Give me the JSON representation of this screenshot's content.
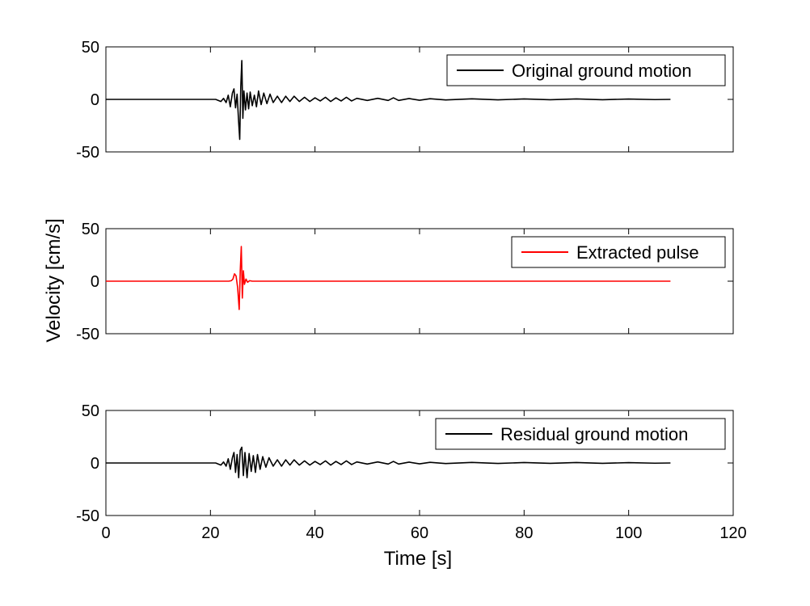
{
  "figure": {
    "ylabel": "Velocity [cm/s]",
    "xlabel": "Time [s]"
  },
  "chart_data": [
    {
      "type": "line",
      "xlim": [
        0,
        120
      ],
      "ylim": [
        -50,
        50
      ],
      "xticks": [
        0,
        20,
        40,
        60,
        80,
        100,
        120
      ],
      "yticks": [
        50,
        0,
        -50
      ],
      "legend": "top-right",
      "grid": false,
      "series": [
        {
          "name": "Original ground motion",
          "color": "#000000",
          "x": [
            0,
            21,
            22,
            22.5,
            23,
            23.4,
            23.8,
            24.2,
            24.5,
            24.8,
            25.1,
            25.4,
            25.6,
            25.8,
            26.0,
            26.2,
            26.4,
            26.7,
            27.0,
            27.3,
            27.6,
            28.0,
            28.4,
            28.8,
            29.2,
            29.7,
            30.2,
            30.8,
            31.4,
            32.0,
            32.8,
            33.6,
            34.4,
            35.2,
            36.0,
            37.0,
            38.0,
            39.0,
            40.0,
            41.0,
            42.0,
            43.0,
            44.0,
            45.0,
            46.0,
            47.0,
            48.0,
            50.0,
            52.0,
            54.0,
            55.0,
            56.0,
            58.0,
            60.0,
            62.0,
            65.0,
            70.0,
            75.0,
            80.0,
            85.0,
            90.0,
            95.0,
            100.0,
            105.0,
            108.0
          ],
          "y": [
            0,
            0,
            -2,
            1,
            -3,
            4,
            -7,
            6,
            10,
            -8,
            5,
            -22,
            -38,
            12,
            37,
            -18,
            8,
            -10,
            6,
            -9,
            7,
            -6,
            4,
            -7,
            8,
            -5,
            6,
            -4,
            5,
            -3,
            3,
            -3,
            3,
            -2,
            3,
            -2,
            2,
            -2,
            1.5,
            -1.5,
            2,
            -2,
            1.5,
            -1.5,
            2,
            -1.5,
            1,
            -1,
            1,
            -1,
            1.5,
            -1,
            0.8,
            -0.8,
            0.6,
            -0.5,
            0.5,
            -0.4,
            0.4,
            -0.3,
            0.4,
            -0.3,
            0.3,
            -0.2,
            0
          ]
        }
      ]
    },
    {
      "type": "line",
      "xlim": [
        0,
        120
      ],
      "ylim": [
        -50,
        50
      ],
      "xticks": [
        0,
        20,
        40,
        60,
        80,
        100,
        120
      ],
      "yticks": [
        50,
        0,
        -50
      ],
      "legend": "top-right",
      "grid": false,
      "series": [
        {
          "name": "Extracted pulse",
          "color": "#ff0000",
          "x": [
            0,
            23.5,
            24.0,
            24.3,
            24.6,
            24.9,
            25.2,
            25.5,
            25.7,
            25.9,
            26.1,
            26.3,
            26.5,
            26.8,
            27.1,
            27.5,
            28.0,
            108.0
          ],
          "y": [
            0,
            0,
            0.5,
            2,
            7,
            5,
            -6,
            -27,
            10,
            33,
            -16,
            10,
            -3,
            2,
            -1,
            0.5,
            0,
            0
          ]
        }
      ]
    },
    {
      "type": "line",
      "xlim": [
        0,
        120
      ],
      "ylim": [
        -50,
        50
      ],
      "xticks": [
        0,
        20,
        40,
        60,
        80,
        100,
        120
      ],
      "yticks": [
        50,
        0,
        -50
      ],
      "legend": "top-right",
      "grid": false,
      "series": [
        {
          "name": "Residual ground motion",
          "color": "#000000",
          "x": [
            0,
            21,
            22,
            22.5,
            23,
            23.4,
            23.8,
            24.2,
            24.5,
            24.8,
            25.1,
            25.4,
            25.7,
            26.0,
            26.3,
            26.6,
            27.0,
            27.4,
            27.8,
            28.2,
            28.6,
            29.0,
            29.5,
            30.0,
            30.6,
            31.2,
            32.0,
            32.8,
            33.6,
            34.4,
            35.2,
            36.0,
            37.0,
            38.0,
            39.0,
            40.0,
            41.0,
            42.0,
            43.0,
            44.0,
            45.0,
            46.0,
            47.0,
            48.0,
            50.0,
            52.0,
            54.0,
            55.0,
            56.0,
            58.0,
            60.0,
            62.0,
            65.0,
            70.0,
            75.0,
            80.0,
            85.0,
            90.0,
            95.0,
            100.0,
            105.0,
            108.0
          ],
          "y": [
            0,
            0,
            -2,
            1,
            -3,
            4,
            -6,
            5,
            10,
            -9,
            8,
            -14,
            12,
            15,
            -12,
            10,
            -14,
            9,
            -8,
            7,
            -9,
            8,
            -6,
            6,
            -4,
            5,
            -3,
            3,
            -3,
            3,
            -2,
            3,
            -2,
            2,
            -2,
            1.5,
            -1.5,
            2,
            -2,
            1.5,
            -1.5,
            2,
            -1.5,
            1,
            -1,
            1,
            -1,
            1.5,
            -1,
            0.8,
            -0.8,
            0.6,
            -0.5,
            0.5,
            -0.4,
            0.4,
            -0.3,
            0.4,
            -0.3,
            0.3,
            -0.2,
            0
          ]
        }
      ]
    }
  ]
}
